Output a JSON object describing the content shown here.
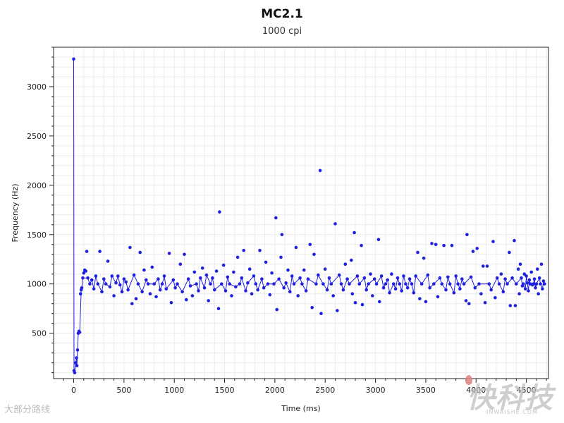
{
  "chart_data": {
    "type": "scatter",
    "title": "MC2.1",
    "subtitle": "1000 cpi",
    "xlabel": "Time (ms)",
    "ylabel": "Frequency (Hz)",
    "xlim": [
      -200,
      4720
    ],
    "ylim": [
      40,
      3400
    ],
    "xticks": [
      0,
      500,
      1000,
      1500,
      2000,
      2500,
      3000,
      3500,
      4000,
      4500
    ],
    "yticks": [
      500,
      1000,
      1500,
      2000,
      2500,
      3000
    ],
    "grid": true,
    "point_color": "#1f1fe0",
    "series": [
      {
        "points": [
          [
            0,
            3280
          ],
          [
            3,
            120
          ],
          [
            10,
            100
          ],
          [
            20,
            200
          ],
          [
            28,
            250
          ],
          [
            32,
            170
          ],
          [
            38,
            330
          ],
          [
            45,
            500
          ],
          [
            52,
            520
          ],
          [
            60,
            510
          ],
          [
            68,
            900
          ],
          [
            75,
            940
          ],
          [
            80,
            960
          ],
          [
            90,
            1060
          ],
          [
            100,
            1110
          ],
          [
            110,
            1140
          ],
          [
            120,
            1130
          ],
          [
            130,
            1330
          ],
          [
            140,
            1060
          ],
          [
            160,
            1000
          ],
          [
            180,
            1040
          ],
          [
            200,
            950
          ],
          [
            220,
            1080
          ],
          [
            240,
            1000
          ],
          [
            260,
            1330
          ],
          [
            280,
            920
          ],
          [
            300,
            1050
          ],
          [
            320,
            1000
          ],
          [
            340,
            1230
          ],
          [
            360,
            970
          ],
          [
            380,
            1080
          ],
          [
            400,
            880
          ],
          [
            420,
            1010
          ],
          [
            440,
            1080
          ],
          [
            460,
            990
          ],
          [
            480,
            920
          ],
          [
            500,
            1050
          ],
          [
            520,
            1020
          ],
          [
            540,
            940
          ],
          [
            560,
            1370
          ],
          [
            580,
            800
          ],
          [
            600,
            1090
          ],
          [
            620,
            850
          ],
          [
            640,
            1000
          ],
          [
            660,
            1320
          ],
          [
            680,
            920
          ],
          [
            700,
            1140
          ],
          [
            720,
            1040
          ],
          [
            740,
            1000
          ],
          [
            760,
            900
          ],
          [
            780,
            1170
          ],
          [
            800,
            1000
          ],
          [
            820,
            870
          ],
          [
            840,
            1050
          ],
          [
            860,
            940
          ],
          [
            880,
            1000
          ],
          [
            900,
            1080
          ],
          [
            920,
            950
          ],
          [
            950,
            1310
          ],
          [
            970,
            810
          ],
          [
            990,
            1040
          ],
          [
            1010,
            960
          ],
          [
            1030,
            1000
          ],
          [
            1060,
            1200
          ],
          [
            1080,
            920
          ],
          [
            1100,
            1300
          ],
          [
            1120,
            840
          ],
          [
            1140,
            1050
          ],
          [
            1160,
            980
          ],
          [
            1180,
            880
          ],
          [
            1200,
            1120
          ],
          [
            1220,
            1000
          ],
          [
            1240,
            930
          ],
          [
            1260,
            1060
          ],
          [
            1280,
            1160
          ],
          [
            1300,
            960
          ],
          [
            1320,
            1090
          ],
          [
            1340,
            830
          ],
          [
            1360,
            1000
          ],
          [
            1380,
            1060
          ],
          [
            1400,
            940
          ],
          [
            1420,
            1130
          ],
          [
            1440,
            750
          ],
          [
            1450,
            1730
          ],
          [
            1470,
            1000
          ],
          [
            1490,
            1190
          ],
          [
            1510,
            930
          ],
          [
            1530,
            1070
          ],
          [
            1550,
            1000
          ],
          [
            1570,
            880
          ],
          [
            1590,
            1120
          ],
          [
            1610,
            970
          ],
          [
            1630,
            1270
          ],
          [
            1650,
            1000
          ],
          [
            1670,
            1060
          ],
          [
            1690,
            1340
          ],
          [
            1710,
            930
          ],
          [
            1730,
            1010
          ],
          [
            1750,
            1150
          ],
          [
            1770,
            900
          ],
          [
            1790,
            1080
          ],
          [
            1810,
            1000
          ],
          [
            1830,
            940
          ],
          [
            1850,
            1340
          ],
          [
            1870,
            1050
          ],
          [
            1890,
            960
          ],
          [
            1910,
            1220
          ],
          [
            1930,
            1000
          ],
          [
            1950,
            890
          ],
          [
            1970,
            1110
          ],
          [
            1990,
            1000
          ],
          [
            2010,
            1670
          ],
          [
            2020,
            740
          ],
          [
            2040,
            1050
          ],
          [
            2060,
            1270
          ],
          [
            2070,
            1500
          ],
          [
            2090,
            960
          ],
          [
            2110,
            1010
          ],
          [
            2130,
            1140
          ],
          [
            2150,
            920
          ],
          [
            2170,
            1080
          ],
          [
            2190,
            1000
          ],
          [
            2210,
            1370
          ],
          [
            2230,
            880
          ],
          [
            2250,
            1060
          ],
          [
            2270,
            1000
          ],
          [
            2290,
            1140
          ],
          [
            2310,
            930
          ],
          [
            2330,
            1050
          ],
          [
            2350,
            1400
          ],
          [
            2370,
            760
          ],
          [
            2390,
            1300
          ],
          [
            2410,
            1000
          ],
          [
            2430,
            1090
          ],
          [
            2450,
            2150
          ],
          [
            2460,
            700
          ],
          [
            2480,
            1000
          ],
          [
            2500,
            1150
          ],
          [
            2520,
            940
          ],
          [
            2540,
            1060
          ],
          [
            2560,
            1000
          ],
          [
            2580,
            880
          ],
          [
            2600,
            1610
          ],
          [
            2620,
            730
          ],
          [
            2640,
            1090
          ],
          [
            2660,
            1000
          ],
          [
            2680,
            940
          ],
          [
            2700,
            1200
          ],
          [
            2720,
            1050
          ],
          [
            2740,
            1000
          ],
          [
            2760,
            1240
          ],
          [
            2770,
            900
          ],
          [
            2790,
            1520
          ],
          [
            2800,
            810
          ],
          [
            2820,
            1080
          ],
          [
            2840,
            1000
          ],
          [
            2860,
            1390
          ],
          [
            2870,
            790
          ],
          [
            2890,
            1060
          ],
          [
            2910,
            940
          ],
          [
            2930,
            1000
          ],
          [
            2950,
            1100
          ],
          [
            2970,
            880
          ],
          [
            2990,
            1050
          ],
          [
            3010,
            1000
          ],
          [
            3030,
            1450
          ],
          [
            3040,
            820
          ],
          [
            3060,
            1080
          ],
          [
            3080,
            960
          ],
          [
            3100,
            1000
          ],
          [
            3120,
            1040
          ],
          [
            3140,
            910
          ],
          [
            3160,
            1100
          ],
          [
            3180,
            1000
          ],
          [
            3200,
            950
          ],
          [
            3220,
            1060
          ],
          [
            3240,
            1000
          ],
          [
            3260,
            930
          ],
          [
            3280,
            1080
          ],
          [
            3300,
            1000
          ],
          [
            3320,
            960
          ],
          [
            3340,
            1050
          ],
          [
            3360,
            1000
          ],
          [
            3380,
            910
          ],
          [
            3400,
            1080
          ],
          [
            3420,
            1320
          ],
          [
            3440,
            850
          ],
          [
            3460,
            1000
          ],
          [
            3480,
            1260
          ],
          [
            3500,
            820
          ],
          [
            3520,
            1090
          ],
          [
            3540,
            960
          ],
          [
            3560,
            1410
          ],
          [
            3580,
            1000
          ],
          [
            3600,
            1400
          ],
          [
            3620,
            870
          ],
          [
            3640,
            1060
          ],
          [
            3660,
            1000
          ],
          [
            3680,
            1390
          ],
          [
            3700,
            940
          ],
          [
            3720,
            1070
          ],
          [
            3740,
            1000
          ],
          [
            3760,
            1390
          ],
          [
            3780,
            910
          ],
          [
            3800,
            1080
          ],
          [
            3820,
            1000
          ],
          [
            3840,
            950
          ],
          [
            3860,
            1050
          ],
          [
            3880,
            1000
          ],
          [
            3900,
            830
          ],
          [
            3910,
            1500
          ],
          [
            3930,
            800
          ],
          [
            3950,
            1070
          ],
          [
            3970,
            1330
          ],
          [
            3990,
            960
          ],
          [
            4010,
            1360
          ],
          [
            4030,
            1000
          ],
          [
            4050,
            900
          ],
          [
            4070,
            1180
          ],
          [
            4090,
            810
          ],
          [
            4110,
            1180
          ],
          [
            4130,
            1000
          ],
          [
            4150,
            940
          ],
          [
            4170,
            1430
          ],
          [
            4190,
            860
          ],
          [
            4210,
            1060
          ],
          [
            4230,
            1000
          ],
          [
            4250,
            1100
          ],
          [
            4270,
            920
          ],
          [
            4290,
            1050
          ],
          [
            4310,
            1000
          ],
          [
            4330,
            1320
          ],
          [
            4340,
            780
          ],
          [
            4360,
            1060
          ],
          [
            4380,
            1440
          ],
          [
            4390,
            780
          ],
          [
            4400,
            1000
          ],
          [
            4420,
            1150
          ],
          [
            4430,
            900
          ],
          [
            4440,
            1200
          ],
          [
            4450,
            1060
          ],
          [
            4460,
            980
          ],
          [
            4470,
            1000
          ],
          [
            4480,
            1100
          ],
          [
            4490,
            950
          ],
          [
            4500,
            1080
          ],
          [
            4510,
            1010
          ],
          [
            4520,
            930
          ],
          [
            4530,
            1040
          ],
          [
            4540,
            1000
          ],
          [
            4550,
            1120
          ],
          [
            4560,
            990
          ],
          [
            4570,
            1000
          ],
          [
            4580,
            1050
          ],
          [
            4590,
            960
          ],
          [
            4600,
            1000
          ],
          [
            4610,
            1150
          ],
          [
            4620,
            900
          ],
          [
            4630,
            1060
          ],
          [
            4640,
            1000
          ],
          [
            4650,
            1200
          ],
          [
            4660,
            950
          ],
          [
            4670,
            1030
          ],
          [
            4680,
            1000
          ]
        ]
      }
    ]
  },
  "watermarks": {
    "left": "大部分路线",
    "right": "快科技",
    "right_sub": "INWAISHE.COM"
  }
}
